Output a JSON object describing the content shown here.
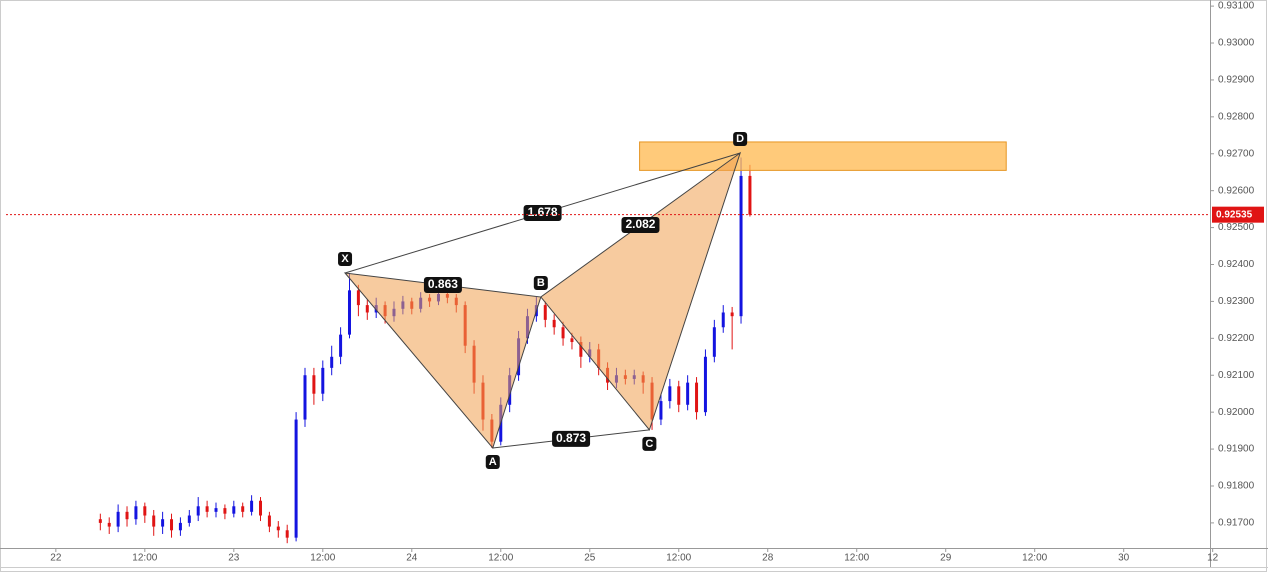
{
  "chart_data": {
    "type": "candlestick",
    "candles": {
      "x": [
        0.5,
        0.6,
        0.7,
        0.8,
        0.9,
        1.0,
        1.1,
        1.2,
        1.3,
        1.4,
        1.5,
        1.6,
        1.7,
        1.8,
        1.9,
        2.0,
        2.1,
        2.2,
        2.3,
        2.4,
        2.5,
        2.6,
        2.7,
        2.8,
        2.9,
        3.0,
        3.1,
        3.2,
        3.3,
        3.4,
        3.5,
        3.6,
        3.7,
        3.8,
        3.9,
        4.0,
        4.1,
        4.2,
        4.3,
        4.4,
        4.5,
        4.6,
        4.7,
        4.8,
        4.9,
        5.0,
        5.1,
        5.2,
        5.3,
        5.4,
        5.5,
        5.6,
        5.7,
        5.8,
        5.9,
        6.0,
        6.1,
        6.2,
        6.3,
        6.4,
        6.5,
        6.6,
        6.7,
        6.8,
        6.9,
        7.0,
        7.1,
        7.2,
        7.3,
        7.4,
        7.5,
        7.6,
        7.7,
        7.8
      ],
      "open": [
        0.9171,
        0.917,
        0.9169,
        0.9173,
        0.9171,
        0.91745,
        0.9172,
        0.9169,
        0.9171,
        0.9168,
        0.917,
        0.9172,
        0.91745,
        0.9173,
        0.9174,
        0.91725,
        0.91745,
        0.9173,
        0.9176,
        0.9172,
        0.9169,
        0.9168,
        0.9166,
        0.9198,
        0.921,
        0.9205,
        0.9212,
        0.9215,
        0.9221,
        0.9233,
        0.9229,
        0.9227,
        0.9229,
        0.9226,
        0.9228,
        0.923,
        0.9228,
        0.9231,
        0.923,
        0.9232,
        0.9231,
        0.9229,
        0.9218,
        0.9208,
        0.9198,
        0.9192,
        0.9202,
        0.921,
        0.922,
        0.9226,
        0.9229,
        0.9225,
        0.9223,
        0.922,
        0.9219,
        0.9215,
        0.9217,
        0.9212,
        0.9208,
        0.921,
        0.9209,
        0.921,
        0.9208,
        0.9198,
        0.9203,
        0.9207,
        0.9202,
        0.9208,
        0.92,
        0.9215,
        0.9223,
        0.9227,
        0.9226,
        0.9264
      ],
      "high": [
        0.91725,
        0.91715,
        0.9175,
        0.91745,
        0.9176,
        0.91755,
        0.91735,
        0.9173,
        0.91725,
        0.91715,
        0.91735,
        0.9177,
        0.9176,
        0.91755,
        0.9175,
        0.9176,
        0.91755,
        0.91775,
        0.9177,
        0.9173,
        0.91705,
        0.91695,
        0.92,
        0.9212,
        0.9212,
        0.9214,
        0.9218,
        0.9223,
        0.92377,
        0.92345,
        0.92305,
        0.9231,
        0.923,
        0.923,
        0.92315,
        0.9231,
        0.92325,
        0.9232,
        0.92335,
        0.9233,
        0.9232,
        0.923,
        0.92195,
        0.921,
        0.91995,
        0.9204,
        0.9212,
        0.9222,
        0.9228,
        0.92312,
        0.923,
        0.92265,
        0.92245,
        0.92215,
        0.92205,
        0.9219,
        0.92185,
        0.92135,
        0.9212,
        0.92115,
        0.92115,
        0.9211,
        0.92095,
        0.9205,
        0.9209,
        0.92085,
        0.921,
        0.92095,
        0.9217,
        0.9225,
        0.9229,
        0.92285,
        0.9269,
        0.9267
      ],
      "low": [
        0.9168,
        0.9167,
        0.91675,
        0.9169,
        0.91695,
        0.917,
        0.91665,
        0.9167,
        0.9166,
        0.91665,
        0.9169,
        0.91705,
        0.91715,
        0.91715,
        0.9171,
        0.91715,
        0.91715,
        0.9172,
        0.91705,
        0.91675,
        0.9166,
        0.91645,
        0.9165,
        0.9196,
        0.9202,
        0.9203,
        0.921,
        0.9213,
        0.922,
        0.9226,
        0.9225,
        0.92255,
        0.9224,
        0.92245,
        0.92265,
        0.92265,
        0.9227,
        0.92285,
        0.9229,
        0.92295,
        0.9227,
        0.9216,
        0.9205,
        0.9195,
        0.91903,
        0.9191,
        0.92,
        0.92085,
        0.92185,
        0.92245,
        0.9223,
        0.9221,
        0.9218,
        0.9217,
        0.9212,
        0.92135,
        0.921,
        0.9206,
        0.92065,
        0.92075,
        0.92075,
        0.9205,
        0.91952,
        0.91965,
        0.9201,
        0.92,
        0.92005,
        0.9198,
        0.9199,
        0.92135,
        0.92215,
        0.9217,
        0.9224,
        0.9253
      ],
      "close": [
        0.917,
        0.9169,
        0.9173,
        0.9171,
        0.91745,
        0.9172,
        0.9169,
        0.9171,
        0.9168,
        0.917,
        0.9172,
        0.91745,
        0.9173,
        0.9174,
        0.91725,
        0.91745,
        0.9173,
        0.9176,
        0.9172,
        0.9169,
        0.9168,
        0.9166,
        0.9198,
        0.921,
        0.9205,
        0.9212,
        0.9215,
        0.9221,
        0.9233,
        0.9229,
        0.9227,
        0.9229,
        0.9226,
        0.9228,
        0.923,
        0.9228,
        0.9231,
        0.923,
        0.9232,
        0.9231,
        0.9229,
        0.9218,
        0.9208,
        0.9198,
        0.9192,
        0.9202,
        0.921,
        0.922,
        0.9226,
        0.9229,
        0.9225,
        0.9223,
        0.922,
        0.9219,
        0.9215,
        0.9217,
        0.9212,
        0.9208,
        0.921,
        0.9209,
        0.921,
        0.9208,
        0.9198,
        0.9203,
        0.9207,
        0.9202,
        0.9208,
        0.92,
        0.9215,
        0.9223,
        0.9227,
        0.9226,
        0.9264,
        0.92535
      ]
    },
    "up_color": "#1414e0",
    "down_color": "#e01414",
    "xlim": [
      -0.56,
      12.97
    ],
    "ylim": [
      0.91632,
      0.93103
    ],
    "xticks": [
      {
        "value": 0,
        "label": "22"
      },
      {
        "value": 1,
        "label": "12:00"
      },
      {
        "value": 2,
        "label": "23"
      },
      {
        "value": 3,
        "label": "12:00"
      },
      {
        "value": 4,
        "label": "24"
      },
      {
        "value": 5,
        "label": "12:00"
      },
      {
        "value": 6,
        "label": "25"
      },
      {
        "value": 7,
        "label": "12:00"
      },
      {
        "value": 8,
        "label": "28"
      },
      {
        "value": 9,
        "label": "12:00"
      },
      {
        "value": 10,
        "label": "29"
      },
      {
        "value": 11,
        "label": "12:00"
      },
      {
        "value": 12,
        "label": "30"
      },
      {
        "value": 13,
        "label": "12"
      }
    ],
    "yticks": [
      {
        "value": 0.917,
        "label": "0.91700"
      },
      {
        "value": 0.918,
        "label": "0.91800"
      },
      {
        "value": 0.919,
        "label": "0.91900"
      },
      {
        "value": 0.92,
        "label": "0.92000"
      },
      {
        "value": 0.921,
        "label": "0.92100"
      },
      {
        "value": 0.922,
        "label": "0.92200"
      },
      {
        "value": 0.923,
        "label": "0.92300"
      },
      {
        "value": 0.924,
        "label": "0.92400"
      },
      {
        "value": 0.925,
        "label": "0.92500"
      },
      {
        "value": 0.926,
        "label": "0.92600"
      },
      {
        "value": 0.927,
        "label": "0.92700"
      },
      {
        "value": 0.928,
        "label": "0.92800"
      },
      {
        "value": 0.929,
        "label": "0.92900"
      },
      {
        "value": 0.93,
        "label": "0.93000"
      },
      {
        "value": 0.931,
        "label": "0.93100"
      }
    ],
    "last_price": 0.92535,
    "last_price_color": "#e01414",
    "pattern": {
      "color": "#f0a050",
      "points": [
        {
          "label": "X",
          "x": 3.25,
          "y": 0.92377
        },
        {
          "label": "A",
          "x": 4.91,
          "y": 0.91903
        },
        {
          "label": "B",
          "x": 5.45,
          "y": 0.92312
        },
        {
          "label": "C",
          "x": 6.67,
          "y": 0.91952
        },
        {
          "label": "D",
          "x": 7.69,
          "y": 0.92702
        }
      ],
      "ratios": [
        0.863,
        1.678,
        0.873,
        2.082
      ]
    },
    "zone": {
      "x": [
        6.56,
        10.68
      ],
      "y": [
        0.92655,
        0.92732
      ],
      "color": "#ffb84d"
    }
  }
}
